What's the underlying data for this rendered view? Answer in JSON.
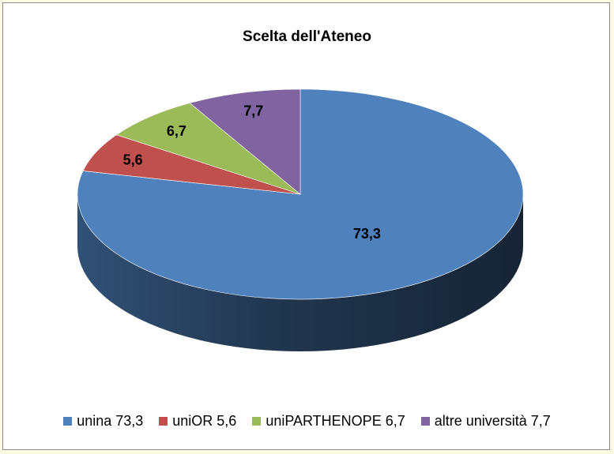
{
  "chart_data": {
    "type": "pie",
    "title": "Scelta dell'Ateneo",
    "style": "3d",
    "legend_position": "bottom",
    "categories": [
      "unina",
      "uniOR",
      "uniPARTHENOPE",
      "altre università"
    ],
    "values": [
      73.3,
      5.6,
      6.7,
      7.7
    ],
    "data_labels": [
      "73,3",
      "5,6",
      "6,7",
      "7,7"
    ],
    "legend_labels": [
      "unina 73,3",
      "uniOR 5,6",
      "uniPARTHENOPE 6,7",
      "altre università 7,7"
    ],
    "colors": [
      "#4f81bd",
      "#c0504d",
      "#9bbb59",
      "#8064a2"
    ]
  }
}
